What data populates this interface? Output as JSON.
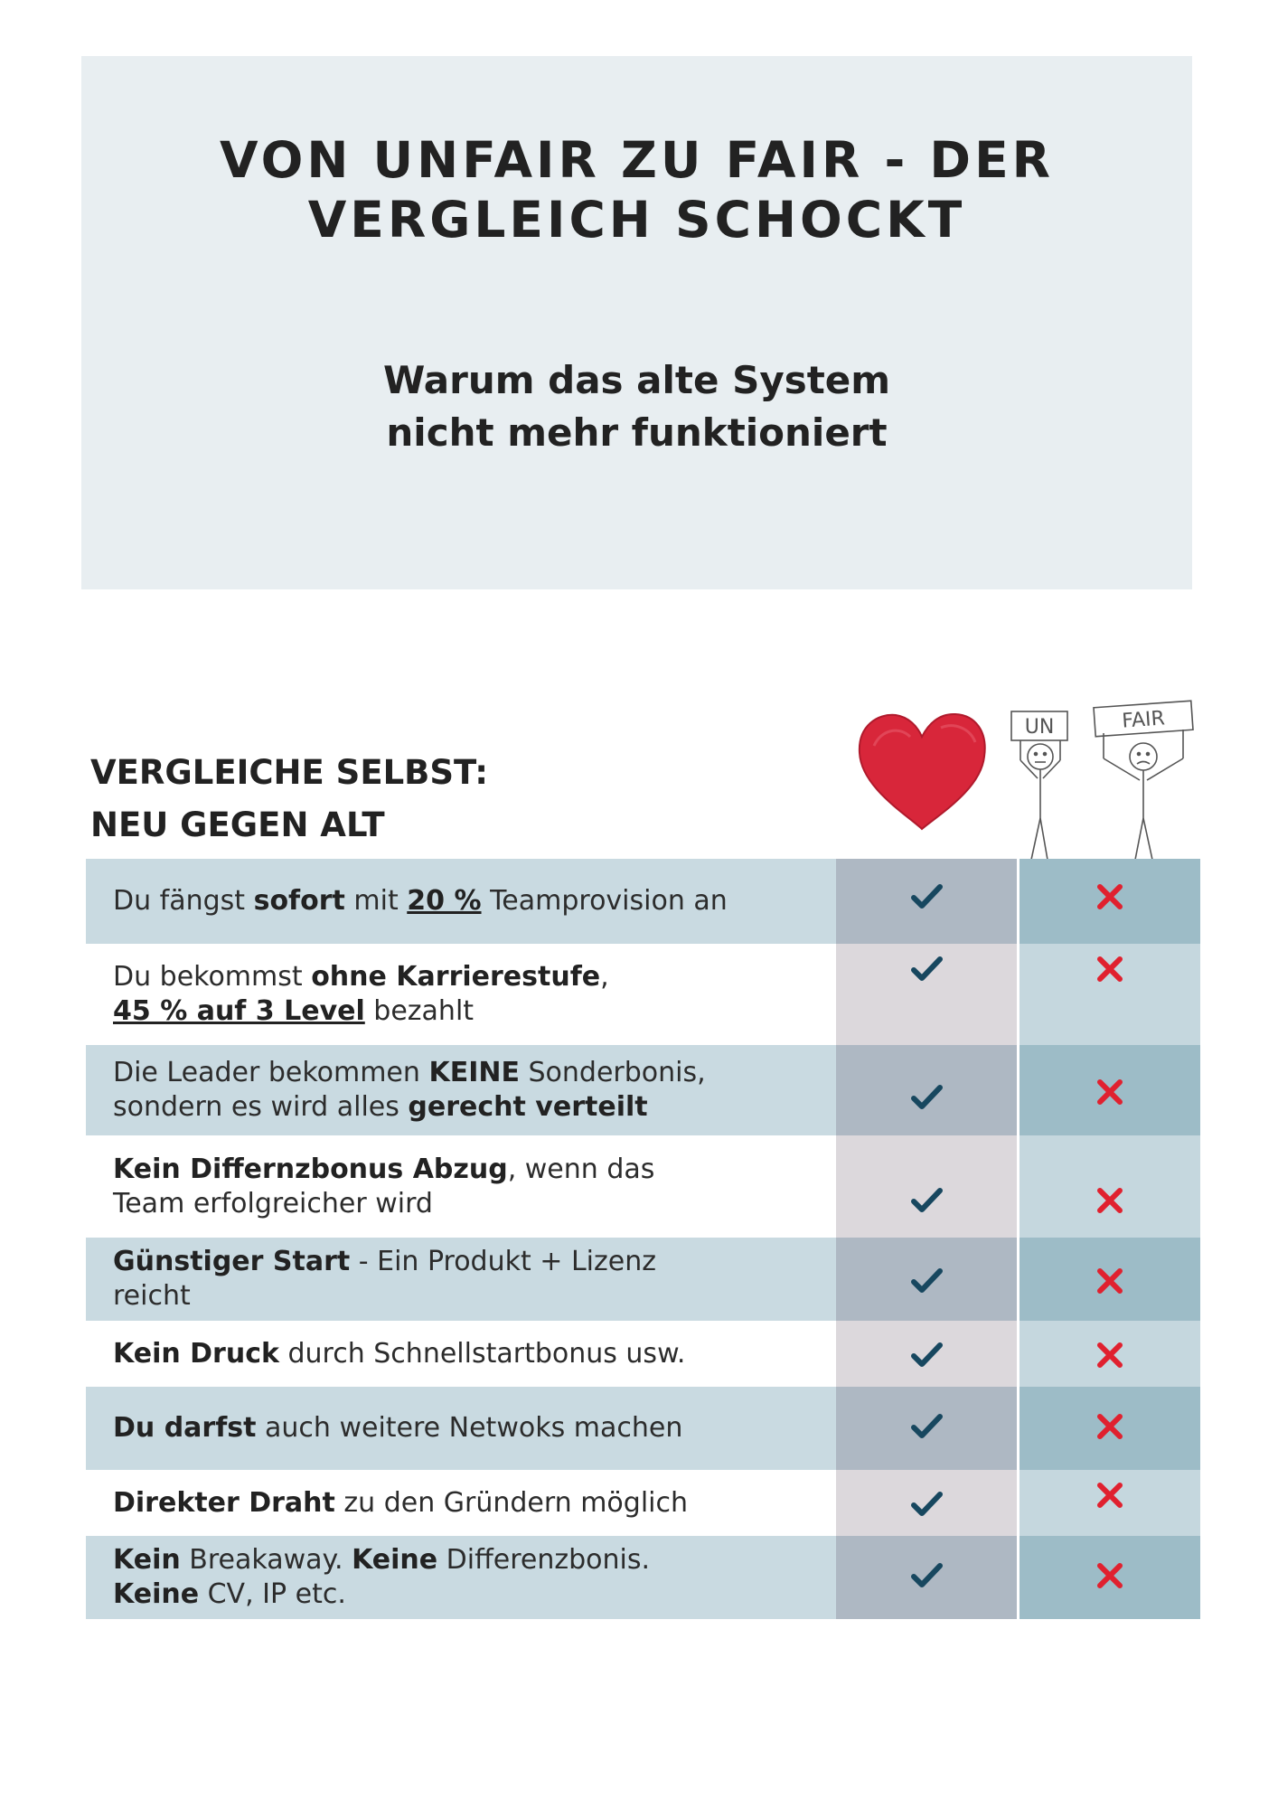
{
  "header": {
    "title_line1": "VON UNFAIR ZU FAIR - DER",
    "title_line2": "VERGLEICH SCHOCKT",
    "subtitle_line1": "Warum das alte System",
    "subtitle_line2": "nicht mehr funktioniert"
  },
  "section": {
    "title_line1": "VERGLEICHE SELBST:",
    "title_line2": "NEU GEGEN ALT",
    "sign_un": "UN",
    "sign_fair": "FAIR"
  },
  "colors": {
    "check": "#17475f",
    "cross": "#e0212f",
    "heart": "#d8263a"
  },
  "icons": {
    "new_column": "heart-icon",
    "old_column": "unfair-fair-figures",
    "yes": "check-icon",
    "no": "cross-icon"
  },
  "rows": [
    {
      "style": "shaded",
      "parts": [
        [
          "t",
          "Du fängst "
        ],
        [
          "b",
          "sofort"
        ],
        [
          "t",
          " mit "
        ],
        [
          "u",
          "20 %"
        ],
        [
          "t",
          " Teamprovision an"
        ]
      ],
      "new": "check",
      "old": "cross"
    },
    {
      "style": "plain",
      "parts": [
        [
          "t",
          "Du bekommst "
        ],
        [
          "b",
          "ohne Karrierestufe"
        ],
        [
          "t",
          ","
        ],
        [
          "br",
          ""
        ],
        [
          "u",
          "45 % auf 3 Level"
        ],
        [
          "t",
          " bezahlt"
        ]
      ],
      "new": "check",
      "old": "cross"
    },
    {
      "style": "shaded",
      "parts": [
        [
          "t",
          "Die Leader bekommen "
        ],
        [
          "b",
          "KEINE"
        ],
        [
          "t",
          " Sonderbonis,"
        ],
        [
          "br",
          ""
        ],
        [
          "t",
          "sondern es wird alles "
        ],
        [
          "b",
          "gerecht verteilt"
        ]
      ],
      "new": "check",
      "old": "cross"
    },
    {
      "style": "plain",
      "parts": [
        [
          "b",
          "Kein Differnzbonus Abzug"
        ],
        [
          "t",
          ", wenn das"
        ],
        [
          "br",
          ""
        ],
        [
          "t",
          "Team erfolgreicher wird"
        ]
      ],
      "new": "check",
      "old": "cross"
    },
    {
      "style": "shaded",
      "parts": [
        [
          "b",
          "Günstiger Start"
        ],
        [
          "t",
          " - Ein Produkt + Lizenz"
        ],
        [
          "br",
          ""
        ],
        [
          "t",
          "reicht"
        ]
      ],
      "new": "check",
      "old": "cross"
    },
    {
      "style": "plain",
      "parts": [
        [
          "b",
          "Kein Druck"
        ],
        [
          "t",
          " durch Schnellstartbonus usw."
        ]
      ],
      "new": "check",
      "old": "cross"
    },
    {
      "style": "shaded",
      "parts": [
        [
          "b",
          "Du darfst"
        ],
        [
          "t",
          " auch weitere Netwoks machen"
        ]
      ],
      "new": "check",
      "old": "cross"
    },
    {
      "style": "plain",
      "parts": [
        [
          "b",
          "Direkter Draht"
        ],
        [
          "t",
          " zu den Gründern möglich"
        ]
      ],
      "new": "check",
      "old": "cross"
    },
    {
      "style": "shaded",
      "parts": [
        [
          "b",
          "Kein"
        ],
        [
          "t",
          " Breakaway. "
        ],
        [
          "b",
          "Keine"
        ],
        [
          "t",
          " Differenzbonis."
        ],
        [
          "br",
          ""
        ],
        [
          "b",
          "Keine"
        ],
        [
          "t",
          " CV, IP etc."
        ]
      ],
      "new": "check",
      "old": "cross"
    }
  ]
}
